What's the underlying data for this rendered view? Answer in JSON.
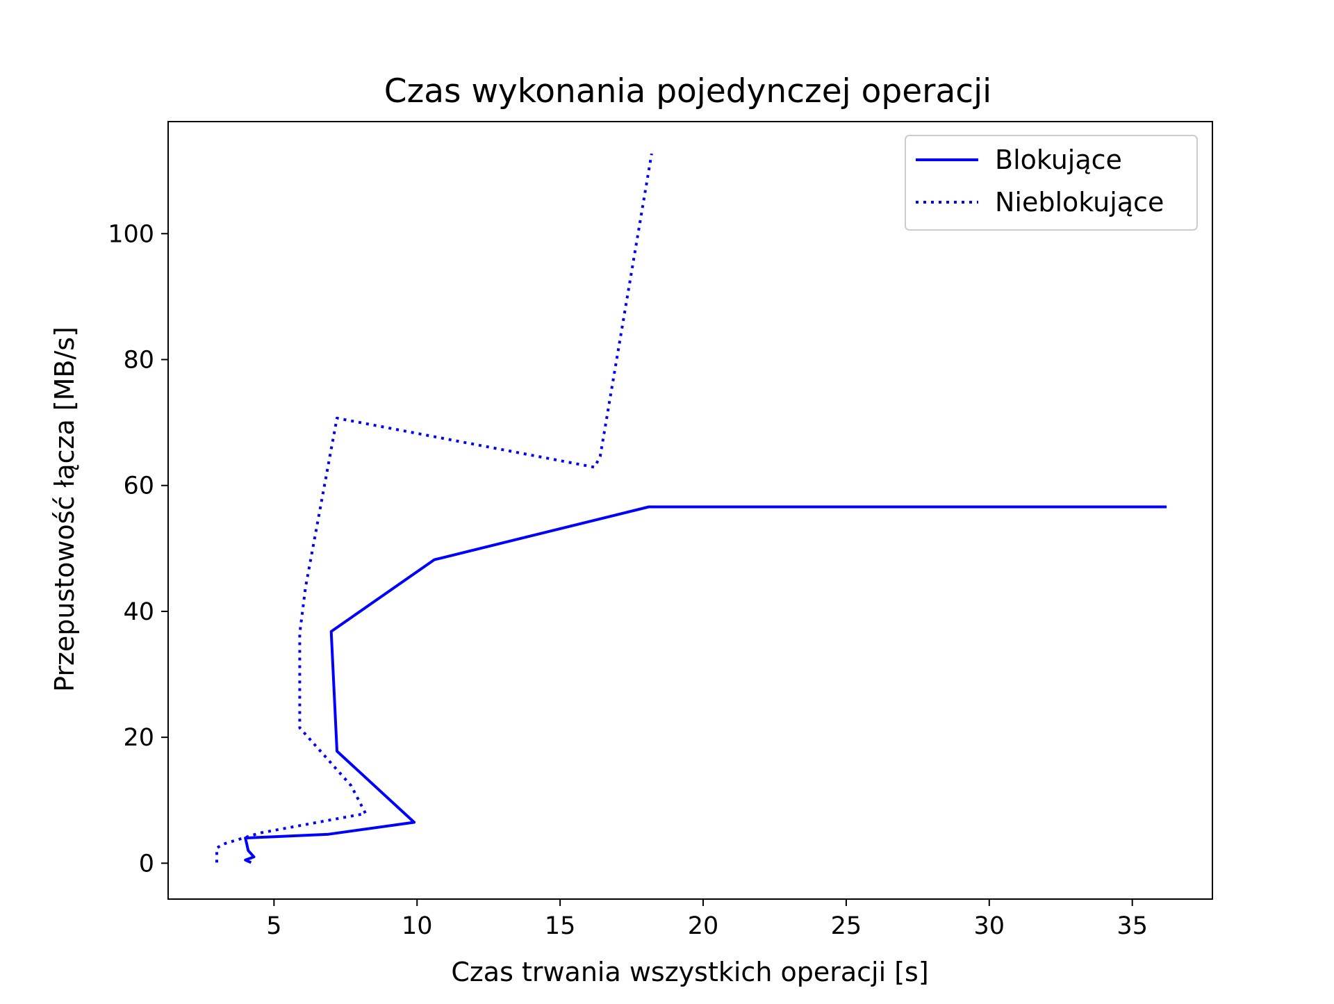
{
  "chart_data": {
    "type": "line",
    "title": "Czas wykonania pojedynczej operacji",
    "xlabel": "Czas trwania wszystkich operacji [s]",
    "ylabel": "Przepustowość łącza [MB/s]",
    "xlim": [
      1.3,
      37.8
    ],
    "ylim": [
      -5.7,
      117.8
    ],
    "xticks": [
      5,
      10,
      15,
      20,
      25,
      30,
      35
    ],
    "yticks": [
      0,
      20,
      40,
      60,
      80,
      100
    ],
    "grid": false,
    "legend_position": "top-right",
    "series": [
      {
        "name": "Blokujące",
        "style": "solid",
        "color": "#0000ff",
        "x": [
          4.2,
          4.0,
          4.3,
          4.1,
          4.0,
          6.9,
          9.9,
          7.2,
          7.0,
          10.6,
          18.1,
          36.2
        ],
        "y": [
          0.1,
          0.5,
          1.0,
          2.0,
          4.0,
          4.6,
          6.5,
          17.8,
          36.8,
          48.2,
          56.6,
          56.6
        ]
      },
      {
        "name": "Nieblokujące",
        "style": "dotted",
        "color": "#0000ff",
        "x": [
          3.0,
          3.0,
          3.2,
          4.5,
          8.2,
          7.7,
          5.9,
          5.9,
          6.1,
          7.2,
          16.2,
          16.4,
          18.2
        ],
        "y": [
          0.1,
          2.4,
          3.0,
          4.8,
          7.9,
          12.3,
          21.5,
          36.5,
          43.8,
          70.7,
          62.9,
          64.6,
          112.7
        ]
      }
    ]
  }
}
